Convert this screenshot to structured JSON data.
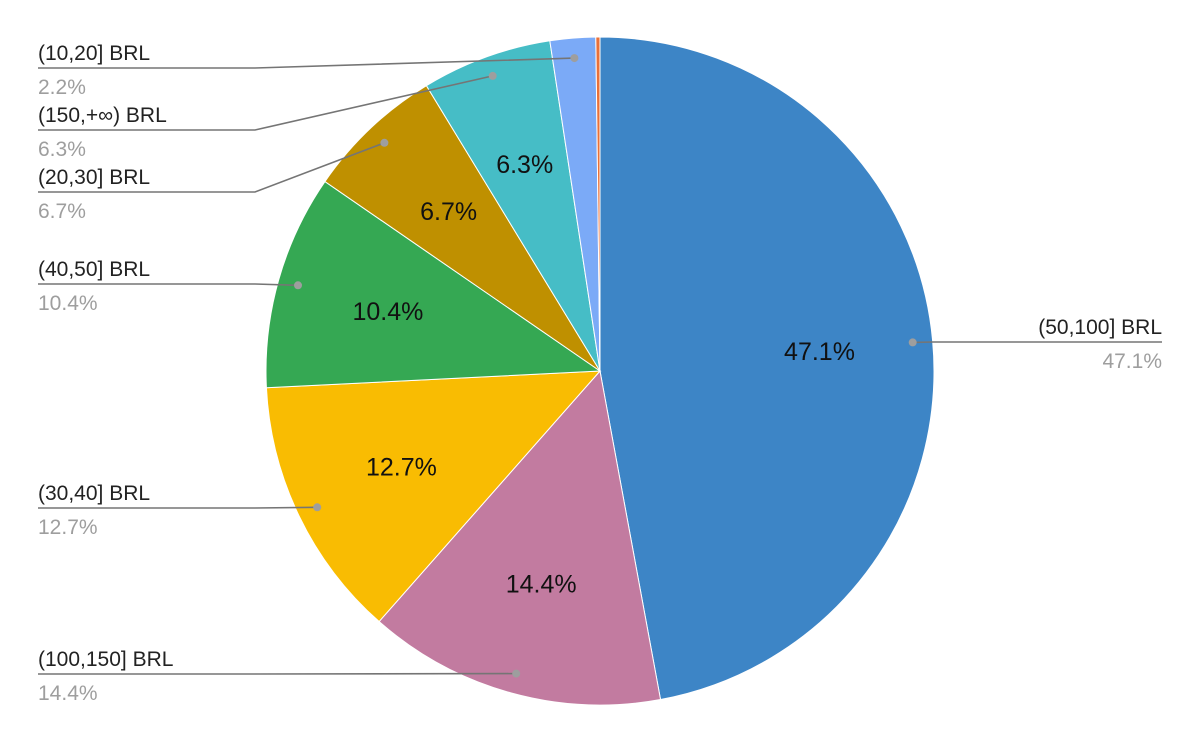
{
  "chart_data": {
    "type": "pie",
    "title": "",
    "unit": "%",
    "start_angle_deg": 0,
    "direction": "clockwise",
    "slices": [
      {
        "label": "(50,100] BRL",
        "value": 47.1,
        "color": "#3d85c6",
        "inside_label": "47.1%",
        "outside_label": "47.1%"
      },
      {
        "label": "(100,150] BRL",
        "value": 14.4,
        "color": "#c27ba0",
        "inside_label": "14.4%",
        "outside_label": "14.4%"
      },
      {
        "label": "(30,40] BRL",
        "value": 12.7,
        "color": "#f9bc02",
        "inside_label": "12.7%",
        "outside_label": "12.7%"
      },
      {
        "label": "(40,50] BRL",
        "value": 10.4,
        "color": "#35a853",
        "inside_label": "10.4%",
        "outside_label": "10.4%"
      },
      {
        "label": "(20,30] BRL",
        "value": 6.7,
        "color": "#bf9000",
        "inside_label": "6.7%",
        "outside_label": "6.7%"
      },
      {
        "label": "(150,+∞) BRL",
        "value": 6.3,
        "color": "#46bdc6",
        "inside_label": "6.3%",
        "outside_label": "6.3%"
      },
      {
        "label": "(10,20] BRL",
        "value": 2.2,
        "color": "#7baaf7",
        "inside_label": "",
        "outside_label": "2.2%"
      },
      {
        "label": "",
        "value": 0.2,
        "color": "#e8703a",
        "inside_label": "",
        "outside_label": ""
      }
    ]
  }
}
